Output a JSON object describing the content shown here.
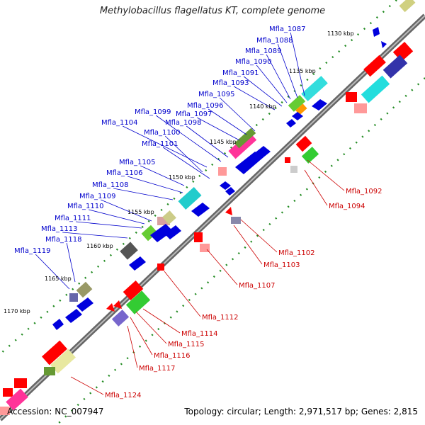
{
  "title": "Methylobacillus flagellatus KT, complete genome",
  "accession": "Accession: NC_007947",
  "summary": "Topology: circular; Length: 2,971,517 bp; Genes: 2,815",
  "colors": {
    "backbone": "#808080",
    "forward_label": "#0000cc",
    "reverse_label": "#cc0000",
    "tick_dot": "#228b22",
    "gene_blue": "#0000dd",
    "gene_red": "#ee0000"
  },
  "kbp_ticks": [
    "1130 kbp",
    "1135 kbp",
    "1140 kbp",
    "1145 kbp",
    "1150 kbp",
    "1155 kbp",
    "1160 kbp",
    "1165 kbp",
    "1170 kbp"
  ],
  "forward_labels": [
    "Mfla_1087",
    "Mfla_1088",
    "Mfla_1089",
    "Mfla_1090",
    "Mfla_1091",
    "Mfla_1093",
    "Mfla_1095",
    "Mfla_1096",
    "Mfla_1097",
    "Mfla_1099",
    "Mfla_1098",
    "Mfla_1104",
    "Mfla_1100",
    "Mfla_1101",
    "Mfla_1105",
    "Mfla_1106",
    "Mfla_1108",
    "Mfla_1109",
    "Mfla_1110",
    "Mfla_1111",
    "Mfla_1113",
    "Mfla_1118",
    "Mfla_1119"
  ],
  "reverse_labels": [
    "Mfla_1092",
    "Mfla_1094",
    "Mfla_1102",
    "Mfla_1103",
    "Mfla_1107",
    "Mfla_1112",
    "Mfla_1114",
    "Mfla_1115",
    "Mfla_1116",
    "Mfla_1117",
    "Mfla_1124"
  ]
}
